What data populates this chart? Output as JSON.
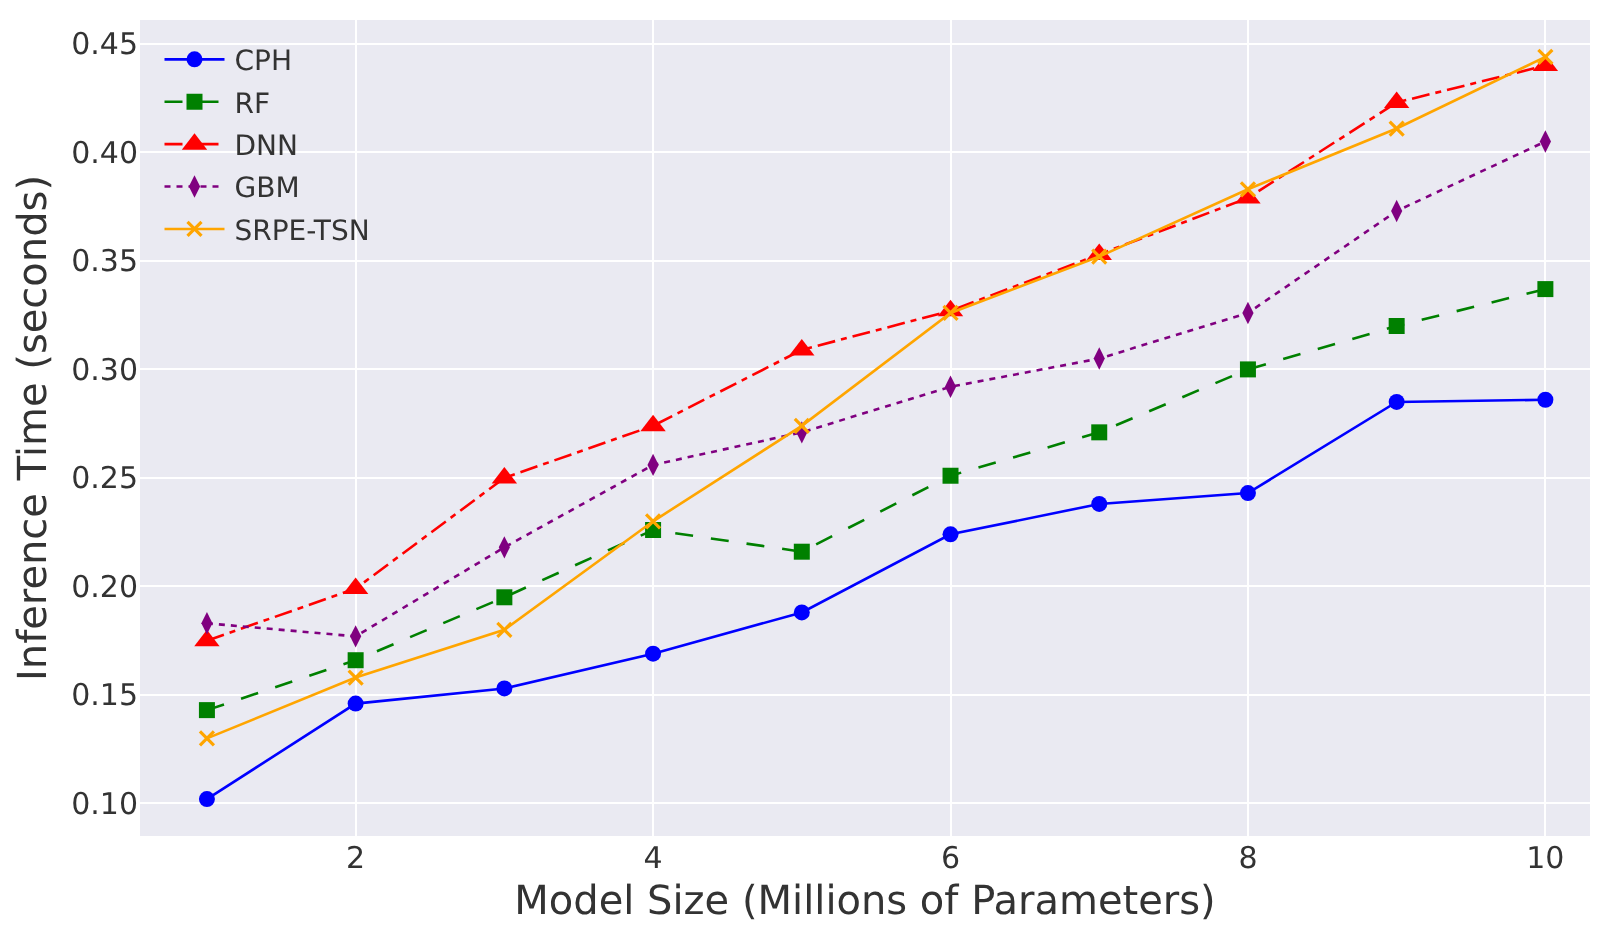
{
  "chart_data": {
    "type": "line",
    "xlabel": "Model Size (Millions of Parameters)",
    "ylabel": "Inference Time (seconds)",
    "x": [
      1,
      2,
      3,
      4,
      5,
      6,
      7,
      8,
      9,
      10
    ],
    "series": [
      {
        "name": "CPH",
        "color": "#0000ff",
        "marker": "circle",
        "line_style": "solid",
        "values": [
          0.102,
          0.146,
          0.153,
          0.169,
          0.188,
          0.224,
          0.238,
          0.243,
          0.285,
          0.286
        ]
      },
      {
        "name": "RF",
        "color": "#008000",
        "marker": "square",
        "line_style": "dashed",
        "values": [
          0.143,
          0.166,
          0.195,
          0.226,
          0.216,
          0.251,
          0.271,
          0.3,
          0.32,
          0.337
        ]
      },
      {
        "name": "DNN",
        "color": "#ff0000",
        "marker": "triangle",
        "line_style": "dashdot",
        "values": [
          0.175,
          0.199,
          0.25,
          0.274,
          0.309,
          0.327,
          0.353,
          0.379,
          0.423,
          0.44
        ]
      },
      {
        "name": "GBM",
        "color": "#800080",
        "marker": "diamond",
        "line_style": "dotted",
        "values": [
          0.183,
          0.177,
          0.218,
          0.256,
          0.271,
          0.292,
          0.305,
          0.326,
          0.373,
          0.405
        ]
      },
      {
        "name": "SRPE-TSN",
        "color": "#ffa500",
        "marker": "cross",
        "line_style": "solid",
        "values": [
          0.13,
          0.158,
          0.18,
          0.23,
          0.274,
          0.326,
          0.352,
          0.383,
          0.411,
          0.444
        ]
      }
    ],
    "xlim": [
      0.55,
      10.3
    ],
    "xticks": [
      2,
      4,
      6,
      8,
      10
    ],
    "ylim": [
      0.085,
      0.461
    ],
    "yticks": [
      {
        "value": 0.1,
        "label": "0.10"
      },
      {
        "value": 0.15,
        "label": "0.15"
      },
      {
        "value": 0.2,
        "label": "0.20"
      },
      {
        "value": 0.25,
        "label": "0.25"
      },
      {
        "value": 0.3,
        "label": "0.30"
      },
      {
        "value": 0.35,
        "label": "0.35"
      },
      {
        "value": 0.4,
        "label": "0.40"
      },
      {
        "value": 0.45,
        "label": "0.45"
      }
    ],
    "grid": true,
    "legend": "top left"
  }
}
